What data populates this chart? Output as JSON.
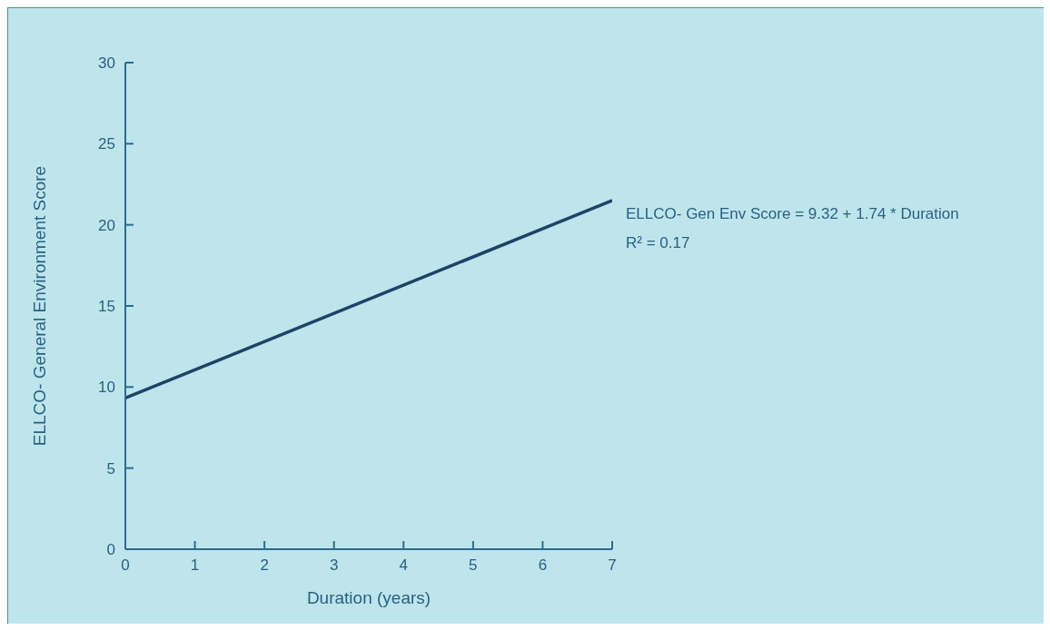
{
  "chart_data": {
    "type": "line",
    "xlabel": "Duration (years)",
    "ylabel": "ELLCO- General Environment Score",
    "x": [
      0,
      7
    ],
    "series": [
      {
        "color": "#1d4466",
        "values": [
          9.32,
          21.5
        ]
      }
    ],
    "xlim": [
      0,
      7
    ],
    "xticks": [
      0,
      1,
      2,
      3,
      4,
      5,
      6,
      7
    ],
    "ylim": [
      0,
      30
    ],
    "yticks": [
      0,
      5,
      10,
      15,
      20,
      25,
      30
    ],
    "annotations": [
      "ELLCO- Gen Env Score = 9.32 + 1.74 * Duration",
      "R² = 0.17"
    ],
    "grid": false,
    "legend": false,
    "marker": "none",
    "line_style": "solid"
  }
}
